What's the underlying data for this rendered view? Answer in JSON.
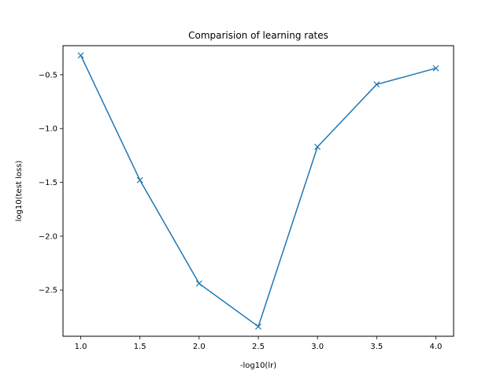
{
  "chart_data": {
    "type": "line",
    "title": "Comparision of learning rates",
    "xlabel": "-log10(lr)",
    "ylabel": "log10(test loss)",
    "xlim": [
      0.85,
      4.15
    ],
    "ylim": [
      -2.93,
      -0.23
    ],
    "x_ticks": [
      1.0,
      1.5,
      2.0,
      2.5,
      3.0,
      3.5,
      4.0
    ],
    "x_tick_labels": [
      "1.0",
      "1.5",
      "2.0",
      "2.5",
      "3.0",
      "3.5",
      "4.0"
    ],
    "y_ticks": [
      -2.5,
      -2.0,
      -1.5,
      -1.0,
      -0.5
    ],
    "y_tick_labels": [
      "−2.5",
      "−2.0",
      "−1.5",
      "−1.0",
      "−0.5"
    ],
    "grid": false,
    "marker": "x",
    "color": "#1f77b4",
    "series": [
      {
        "x": [
          1.0,
          1.5,
          2.0,
          2.5,
          3.0,
          3.5,
          4.0
        ],
        "values": [
          -0.32,
          -1.48,
          -2.44,
          -2.84,
          -1.17,
          -0.59,
          -0.44
        ]
      }
    ]
  }
}
